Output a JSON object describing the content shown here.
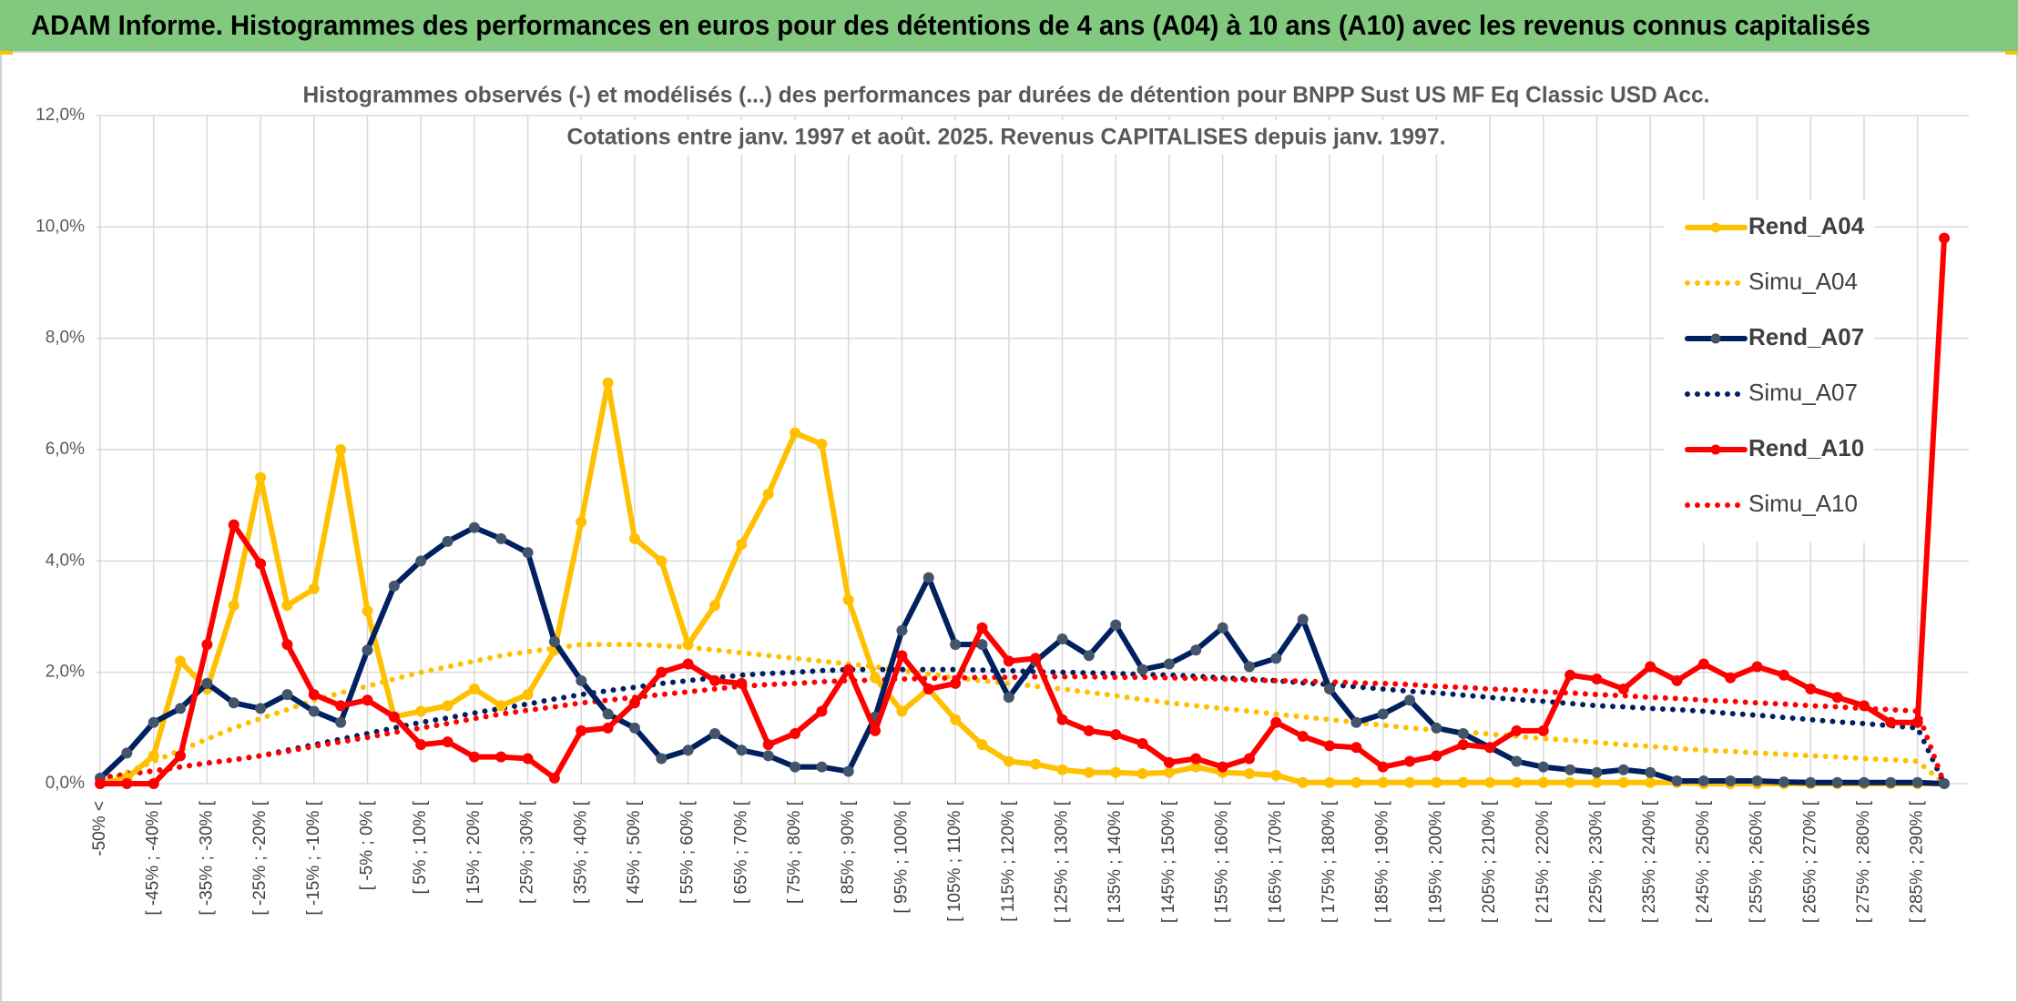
{
  "header": {
    "title": "ADAM Informe. Histogrammes des performances en euros pour des détentions de 4 ans (A04) à 10 ans (A10) avec les revenus connus capitalisés"
  },
  "chart_data": {
    "type": "line",
    "title": "Histogrammes observés (-) et modélisés (...) des performances par durées de détention pour BNPP Sust US MF Eq Classic USD Acc.",
    "subtitle": "Cotations entre janv. 1997 et août. 2025. Revenus CAPITALISES depuis janv. 1997.",
    "categories": [
      "-50% <",
      null,
      "[ -45% ; -40% [",
      null,
      "[ -35% ; -30% [",
      null,
      "[ -25% ; -20% [",
      null,
      "[ -15% ; -10% [",
      null,
      "[ -5% ; 0% [",
      null,
      "[ 5% ; 10% [",
      null,
      "[ 15% ; 20% [",
      null,
      "[ 25% ; 30% [",
      null,
      "[ 35% ; 40% [",
      null,
      "[ 45% ; 50% [",
      null,
      "[ 55% ; 60% [",
      null,
      "[ 65% ; 70% [",
      null,
      "[ 75% ; 80% [",
      null,
      "[ 85% ; 90% [",
      null,
      "[ 95% ; 100% [",
      null,
      "[ 105% ; 110% [",
      null,
      "[ 115% ; 120% [",
      null,
      "[ 125% ; 130% [",
      null,
      "[ 135% ; 140% [",
      null,
      "[ 145% ; 150% [",
      null,
      "[ 155% ; 160% [",
      null,
      "[ 165% ; 170% [",
      null,
      "[ 175% ; 180% [",
      null,
      "[ 185% ; 190% [",
      null,
      "[ 195% ; 200% [",
      null,
      "[ 205% ; 210% [",
      null,
      "[ 215% ; 220% [",
      null,
      "[ 225% ; 230% [",
      null,
      "[ 235% ; 240% [",
      null,
      "[ 245% ; 250% [",
      null,
      "[ 255% ; 260% [",
      null,
      "[ 265% ; 270% [",
      null,
      "[ 275% ; 280% [",
      null,
      "[ 285% ; 290% [",
      null
    ],
    "series": [
      {
        "name": "Rend_A04",
        "color": "#ffc000",
        "line_style": "solid",
        "marker": true,
        "values": [
          0.0,
          0.1,
          0.5,
          2.2,
          1.7,
          3.2,
          5.5,
          3.2,
          3.5,
          6.0,
          3.1,
          1.2,
          1.3,
          1.4,
          1.7,
          1.4,
          1.6,
          2.4,
          4.7,
          7.2,
          4.4,
          4.0,
          2.5,
          3.2,
          4.3,
          5.2,
          6.3,
          6.1,
          3.3,
          1.9,
          1.3,
          1.7,
          1.15,
          0.7,
          0.4,
          0.35,
          0.25,
          0.2,
          0.2,
          0.18,
          0.2,
          0.3,
          0.2,
          0.18,
          0.15,
          0.02,
          0.02,
          0.02,
          0.02,
          0.02,
          0.02,
          0.02,
          0.02,
          0.02,
          0.02,
          0.02,
          0.02,
          0.02,
          0.02,
          0.02,
          0,
          0,
          0,
          0,
          0,
          0,
          0,
          0,
          0,
          0
        ]
      },
      {
        "name": "Simu_A04",
        "color": "#ffc000",
        "line_style": "dotted",
        "marker": false,
        "values": [
          0,
          0.2,
          0.4,
          0.6,
          0.8,
          1.0,
          1.17,
          1.33,
          1.5,
          1.63,
          1.75,
          1.88,
          2.0,
          2.1,
          2.2,
          2.3,
          2.37,
          2.43,
          2.5,
          2.5,
          2.5,
          2.48,
          2.45,
          2.4,
          2.35,
          2.3,
          2.25,
          2.2,
          2.15,
          2.1,
          2.03,
          1.97,
          1.9,
          1.85,
          1.8,
          1.75,
          1.7,
          1.64,
          1.58,
          1.51,
          1.45,
          1.4,
          1.35,
          1.3,
          1.25,
          1.2,
          1.15,
          1.1,
          1.05,
          1.0,
          0.96,
          0.93,
          0.89,
          0.85,
          0.81,
          0.78,
          0.74,
          0.7,
          0.67,
          0.63,
          0.6,
          0.58,
          0.55,
          0.53,
          0.5,
          0.48,
          0.45,
          0.43,
          0.4,
          0
        ]
      },
      {
        "name": "Rend_A07",
        "color": "#002060",
        "line_style": "solid",
        "marker": true,
        "marker_color": "#44546a",
        "values": [
          0.1,
          0.55,
          1.1,
          1.35,
          1.8,
          1.45,
          1.35,
          1.6,
          1.3,
          1.1,
          2.4,
          3.55,
          4.0,
          4.35,
          4.6,
          4.4,
          4.15,
          2.55,
          1.85,
          1.25,
          1.0,
          0.45,
          0.6,
          0.9,
          0.6,
          0.5,
          0.3,
          0.3,
          0.22,
          1.2,
          2.75,
          3.7,
          2.5,
          2.5,
          1.55,
          2.2,
          2.6,
          2.3,
          2.85,
          2.05,
          2.15,
          2.4,
          2.8,
          2.1,
          2.25,
          2.95,
          1.7,
          1.1,
          1.25,
          1.5,
          1.0,
          0.9,
          0.65,
          0.4,
          0.3,
          0.25,
          0.2,
          0.25,
          0.2,
          0.05,
          0.05,
          0.05,
          0.05,
          0.03,
          0.02,
          0.02,
          0.02,
          0.02,
          0.02,
          0
        ]
      },
      {
        "name": "Simu_A07",
        "color": "#002060",
        "line_style": "dotted",
        "marker": false,
        "values": [
          0.1,
          0.17,
          0.23,
          0.3,
          0.37,
          0.43,
          0.5,
          0.6,
          0.7,
          0.8,
          0.9,
          1.0,
          1.1,
          1.18,
          1.27,
          1.35,
          1.43,
          1.52,
          1.6,
          1.67,
          1.73,
          1.8,
          1.85,
          1.9,
          1.95,
          1.98,
          2.0,
          2.03,
          2.05,
          2.05,
          2.05,
          2.05,
          2.05,
          2.04,
          2.03,
          2.01,
          2.0,
          1.99,
          1.98,
          1.96,
          1.95,
          1.93,
          1.9,
          1.88,
          1.85,
          1.81,
          1.78,
          1.74,
          1.7,
          1.66,
          1.63,
          1.59,
          1.55,
          1.51,
          1.48,
          1.44,
          1.4,
          1.38,
          1.35,
          1.33,
          1.3,
          1.26,
          1.23,
          1.19,
          1.15,
          1.11,
          1.08,
          1.04,
          1.0,
          0
        ]
      },
      {
        "name": "Rend_A10",
        "color": "#ff0000",
        "line_style": "solid",
        "marker": true,
        "values": [
          0,
          0,
          0,
          0.5,
          2.5,
          4.65,
          3.95,
          2.5,
          1.6,
          1.4,
          1.5,
          1.2,
          0.7,
          0.75,
          0.48,
          0.48,
          0.45,
          0.1,
          0.95,
          1.0,
          1.45,
          2.0,
          2.15,
          1.85,
          1.8,
          0.7,
          0.9,
          1.3,
          2.05,
          0.95,
          2.3,
          1.7,
          1.8,
          2.8,
          2.2,
          2.25,
          1.15,
          0.95,
          0.88,
          0.72,
          0.38,
          0.45,
          0.3,
          0.45,
          1.1,
          0.85,
          0.68,
          0.65,
          0.3,
          0.4,
          0.5,
          0.7,
          0.65,
          0.95,
          0.95,
          1.95,
          1.88,
          1.7,
          2.1,
          1.85,
          2.15,
          1.9,
          2.1,
          1.95,
          1.7,
          1.55,
          1.4,
          1.1,
          1.1,
          9.8
        ]
      },
      {
        "name": "Simu_A10",
        "color": "#ff0000",
        "line_style": "dotted",
        "marker": false,
        "values": [
          0.1,
          0.17,
          0.23,
          0.3,
          0.37,
          0.43,
          0.5,
          0.58,
          0.67,
          0.75,
          0.83,
          0.92,
          1.0,
          1.08,
          1.17,
          1.25,
          1.32,
          1.38,
          1.45,
          1.5,
          1.55,
          1.6,
          1.65,
          1.7,
          1.75,
          1.78,
          1.8,
          1.83,
          1.85,
          1.86,
          1.88,
          1.89,
          1.9,
          1.91,
          1.91,
          1.92,
          1.92,
          1.92,
          1.91,
          1.91,
          1.9,
          1.89,
          1.88,
          1.86,
          1.85,
          1.84,
          1.83,
          1.81,
          1.8,
          1.78,
          1.75,
          1.73,
          1.7,
          1.68,
          1.65,
          1.63,
          1.6,
          1.58,
          1.55,
          1.53,
          1.5,
          1.48,
          1.45,
          1.43,
          1.4,
          1.38,
          1.35,
          1.33,
          1.3,
          0
        ]
      }
    ],
    "ylim": [
      0,
      12
    ],
    "yticks": [
      {
        "value": 0,
        "label": "0,0%"
      },
      {
        "value": 2,
        "label": "2,0%"
      },
      {
        "value": 4,
        "label": "4,0%"
      },
      {
        "value": 6,
        "label": "6,0%"
      },
      {
        "value": 8,
        "label": "8,0%"
      },
      {
        "value": 10,
        "label": "10,0%"
      },
      {
        "value": 12,
        "label": "12,0%"
      }
    ],
    "grid": true,
    "legend": "right"
  }
}
